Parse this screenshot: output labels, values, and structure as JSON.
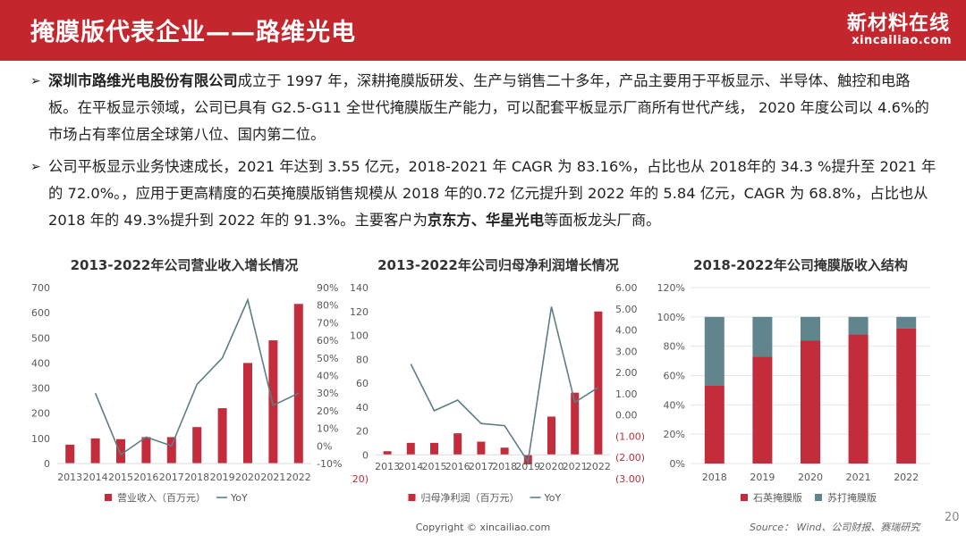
{
  "header": {
    "title": "掩膜版代表企业——路维光电",
    "logo_cn": "新材料在线",
    "logo_en": "xincailiao.com"
  },
  "paragraphs": {
    "p1": {
      "bold1": "深圳市路维光电股份有限公司",
      "text1": "成立于 1997 年，深耕掩膜版研发、生产与销售二十多年，产品主要用于平板显示、半导体、触控和电路板。在平板显示领域，公司已具有 G2.5-G11 全世代掩膜版生产能力，可以配套平板显示厂商所有世代产线， 2020 年度公司以 4.6%的市场占有率位居全球第八位、国内第二位。"
    },
    "p2": {
      "text1": "公司平板显示业务快速成长，2021 年达到 3.55 亿元，2018-2021 年 CAGR 为 83.16%，占比也从 2018年的 34.3 %提升至 2021 年的 72.0%。，应用于更高精度的石英掩膜版销售规模从 2018 年的0.72 亿元提升到 2022 年的 5.84 亿元，CAGR 为 68.8%，占比也从 2018 年的 49.3%提升到 2022 年的 91.3%。主要客户为",
      "bold1": "京东方、华星光电",
      "text2": "等面板龙头厂商。"
    }
  },
  "footer": {
    "copyright": "Copyright © xincailiao.com",
    "source": "Source： Wind、公司财报、赛瑞研究",
    "page": "20"
  },
  "colors": {
    "header_bg": "#c4262e",
    "bar_red": "#c32c3b",
    "line_gray": "#5d7e85",
    "bar_gray": "#61858d",
    "axis_text": "#595959"
  },
  "chart_data": [
    {
      "type": "bar",
      "title": "2013-2022年公司营业收入增长情况",
      "categories": [
        "2013",
        "2014",
        "2015",
        "2016",
        "2017",
        "2018",
        "2019",
        "2020",
        "2021",
        "2022"
      ],
      "series": [
        {
          "name": "营业收入（百万元）",
          "type": "bar",
          "axis": "left",
          "values": [
            75,
            100,
            97,
            105,
            105,
            145,
            220,
            400,
            490,
            635
          ]
        },
        {
          "name": "YoY",
          "type": "line",
          "axis": "right",
          "values": [
            null,
            30,
            -5,
            5,
            0,
            35,
            50,
            83,
            23,
            30
          ]
        }
      ],
      "left_axis": {
        "ylim": [
          0,
          700
        ],
        "ticks": [
          "0",
          "100",
          "200",
          "300",
          "400",
          "500",
          "600",
          "700"
        ]
      },
      "right_axis": {
        "ylim": [
          -10,
          90
        ],
        "ticks": [
          "-10%",
          "0%",
          "10%",
          "20%",
          "30%",
          "40%",
          "50%",
          "60%",
          "70%",
          "80%",
          "90%"
        ]
      },
      "legend": "bottom"
    },
    {
      "type": "bar",
      "title": "2013-2022年公司归母净利润增长情况",
      "categories": [
        "2013",
        "2014",
        "2015",
        "2016",
        "2017",
        "2018",
        "2019",
        "2020",
        "2021",
        "2022"
      ],
      "series": [
        {
          "name": "归母净利润（百万元）",
          "type": "bar",
          "axis": "left",
          "values": [
            3,
            10,
            10,
            18,
            11,
            6,
            -8,
            32,
            52,
            120
          ]
        },
        {
          "name": "YoY",
          "type": "line",
          "axis": "right",
          "values": [
            null,
            2.4,
            0.2,
            0.7,
            -0.4,
            -0.5,
            -2.2,
            5.1,
            0.6,
            1.3
          ]
        }
      ],
      "left_axis": {
        "ylim": [
          -20,
          140
        ],
        "ticks": [
          "(20)",
          "0",
          "20",
          "40",
          "60",
          "80",
          "100",
          "120",
          "140"
        ]
      },
      "right_axis": {
        "ylim": [
          -3,
          6
        ],
        "ticks": [
          "(3.00)",
          "(2.00)",
          "(1.00)",
          "0.00",
          "1.00",
          "2.00",
          "3.00",
          "4.00",
          "5.00",
          "6.00"
        ]
      },
      "legend": "bottom"
    },
    {
      "type": "bar",
      "stacked": true,
      "title": "2018-2022年公司掩膜版收入结构",
      "categories": [
        "2018",
        "2019",
        "2020",
        "2021",
        "2022"
      ],
      "series": [
        {
          "name": "石英掩膜版",
          "values": [
            53,
            73,
            84,
            88,
            92
          ]
        },
        {
          "name": "苏打掩膜版",
          "values": [
            47,
            27,
            16,
            12,
            8
          ]
        }
      ],
      "ylim": [
        0,
        120
      ],
      "ticks": [
        "0%",
        "20%",
        "40%",
        "60%",
        "80%",
        "100%",
        "120%"
      ],
      "legend": "bottom"
    }
  ]
}
